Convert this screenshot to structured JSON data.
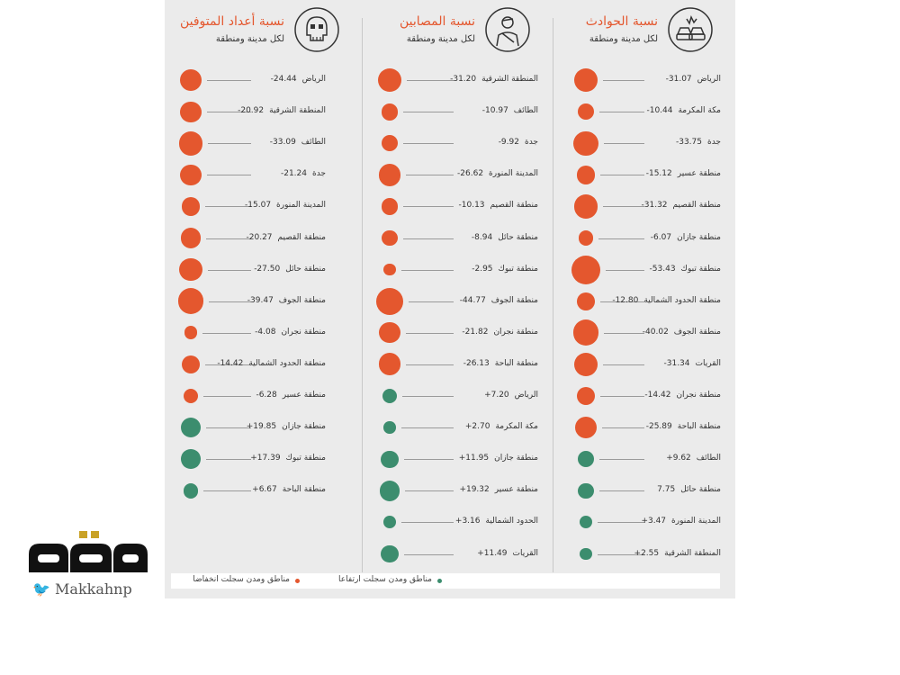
{
  "colors": {
    "decrease": "#e4572e",
    "increase": "#3c8d6e",
    "title": "#e4572e",
    "panel": "#ebebeb"
  },
  "legend": {
    "decrease_label": "مناطق ومدن سجلت انخفاضا",
    "increase_label": "مناطق ومدن سجلت ارتفاعا"
  },
  "logo": {
    "name": "مكة",
    "handle": "Makkahnp",
    "icon": "twitter-bird-icon"
  },
  "chart_data": [
    {
      "type": "scatter",
      "title": "نسبة الحوادث",
      "subtitle": "لكل مدينة ومنطقة",
      "icon": "car-crash-icon",
      "items": [
        {
          "name": "الرياض",
          "value": -31.07,
          "text": "-31.07"
        },
        {
          "name": "مكة المكرمة",
          "value": -10.44,
          "text": "-10.44"
        },
        {
          "name": "جدة",
          "value": -33.75,
          "text": "-33.75"
        },
        {
          "name": "منطقة عسير",
          "value": -15.12,
          "text": "-15.12"
        },
        {
          "name": "منطقة القصيم",
          "value": -31.32,
          "text": "-31.32"
        },
        {
          "name": "منطقة جازان",
          "value": -6.07,
          "text": "-6.07"
        },
        {
          "name": "منطقة تبوك",
          "value": -53.43,
          "text": "-53.43"
        },
        {
          "name": "منطقة الحدود الشمالية",
          "value": -12.8,
          "text": "-12.80"
        },
        {
          "name": "منطقة الجوف",
          "value": -40.02,
          "text": "-40.02"
        },
        {
          "name": "القريات",
          "value": -31.34,
          "text": "-31.34"
        },
        {
          "name": "منطقة نجران",
          "value": -14.42,
          "text": "-14.42"
        },
        {
          "name": "منطقة الباحة",
          "value": -25.89,
          "text": "-25.89"
        },
        {
          "name": "الطائف",
          "value": 9.62,
          "text": "+9.62"
        },
        {
          "name": "منطقة حائل",
          "value": 7.75,
          "text": "7.75"
        },
        {
          "name": "المدينة المنورة",
          "value": 3.47,
          "text": "+3.47"
        },
        {
          "name": "المنطقة الشرقية",
          "value": 2.55,
          "text": "+2.55"
        }
      ]
    },
    {
      "type": "scatter",
      "title": "نسبة المصابين",
      "subtitle": "لكل مدينة ومنطقة",
      "icon": "injured-person-icon",
      "items": [
        {
          "name": "المنطقة الشرقية",
          "value": -31.2,
          "text": "-31.20"
        },
        {
          "name": "الطائف",
          "value": -10.97,
          "text": "-10.97"
        },
        {
          "name": "جدة",
          "value": -9.92,
          "text": "-9.92"
        },
        {
          "name": "المدينة المنورة",
          "value": -26.62,
          "text": "-26.62"
        },
        {
          "name": "منطقة القصيم",
          "value": -10.13,
          "text": "-10.13"
        },
        {
          "name": "منطقة حائل",
          "value": -8.94,
          "text": "-8.94"
        },
        {
          "name": "منطقة تبوك",
          "value": -2.95,
          "text": "-2.95"
        },
        {
          "name": "منطقة الجوف",
          "value": -44.77,
          "text": "-44.77"
        },
        {
          "name": "منطقة نجران",
          "value": -21.82,
          "text": "-21.82"
        },
        {
          "name": "منطقة الباحة",
          "value": -26.13,
          "text": "-26.13"
        },
        {
          "name": "الرياض",
          "value": 7.2,
          "text": "+7.20"
        },
        {
          "name": "مكة المكرمة",
          "value": 2.7,
          "text": "+2.70"
        },
        {
          "name": "منطقة جازان",
          "value": 11.95,
          "text": "+11.95"
        },
        {
          "name": "منطقة عسير",
          "value": 19.32,
          "text": "+19.32"
        },
        {
          "name": "الحدود الشمالية",
          "value": 3.16,
          "text": "+3.16"
        },
        {
          "name": "القريات",
          "value": 11.49,
          "text": "+11.49"
        }
      ]
    },
    {
      "type": "scatter",
      "title": "نسبة أعداد المتوفين",
      "subtitle": "لكل مدينة ومنطقة",
      "icon": "skull-icon",
      "items": [
        {
          "name": "الرياض",
          "value": -24.44,
          "text": "-24.44"
        },
        {
          "name": "المنطقة الشرقية",
          "value": -20.92,
          "text": "-20.92"
        },
        {
          "name": "الطائف",
          "value": -33.09,
          "text": "-33.09"
        },
        {
          "name": "جدة",
          "value": -21.24,
          "text": "-21.24"
        },
        {
          "name": "المدينة المنورة",
          "value": -15.07,
          "text": "-15.07"
        },
        {
          "name": "منطقة القصيم",
          "value": -20.27,
          "text": "-20.27"
        },
        {
          "name": "منطقة حائل",
          "value": -27.5,
          "text": "-27.50"
        },
        {
          "name": "منطقة الجوف",
          "value": -39.47,
          "text": "-39.47"
        },
        {
          "name": "منطقة نجران",
          "value": -4.08,
          "text": "-4.08"
        },
        {
          "name": "منطقة الحدود الشمالية",
          "value": -14.42,
          "text": "-14.42"
        },
        {
          "name": "منطقة عسير",
          "value": -6.28,
          "text": "-6.28"
        },
        {
          "name": "منطقة جازان",
          "value": 19.85,
          "text": "+19.85"
        },
        {
          "name": "منطقة تبوك",
          "value": 17.39,
          "text": "+17.39"
        },
        {
          "name": "منطقة الباحة",
          "value": 6.67,
          "text": "+6.67"
        }
      ]
    }
  ]
}
